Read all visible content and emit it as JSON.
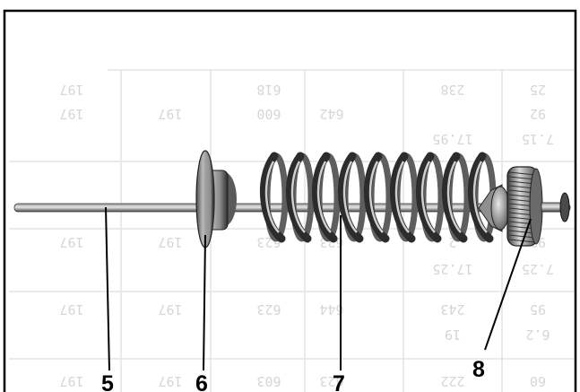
{
  "callouts": [
    {
      "label": "5",
      "part": "rod"
    },
    {
      "label": "6",
      "part": "spring-seat"
    },
    {
      "label": "7",
      "part": "coil-spring"
    },
    {
      "label": "8",
      "part": "knurled-adjuster"
    }
  ],
  "background_table_rows": [
    [
      "25",
      "238",
      "618",
      "",
      "",
      "197"
    ],
    [
      "92",
      "",
      "600",
      "642",
      "197",
      "197"
    ],
    [
      "7.15",
      "17.95",
      "",
      "",
      "",
      ""
    ],
    [
      "92",
      "2",
      "623",
      "623",
      "197",
      "197"
    ],
    [
      "7.25",
      "17.25",
      "",
      "",
      "",
      ""
    ],
    [
      "95",
      "243",
      "623",
      "644",
      "197",
      "197"
    ],
    [
      "6.2",
      "19",
      "",
      "",
      "",
      ""
    ],
    [
      "60",
      "222",
      "603",
      "623",
      "197",
      "197"
    ]
  ],
  "colors": {
    "frame": "#000000",
    "table_text": "#d6d6d6",
    "metal_dark": "#3a3a3a",
    "metal_light": "#cfcfcf"
  }
}
